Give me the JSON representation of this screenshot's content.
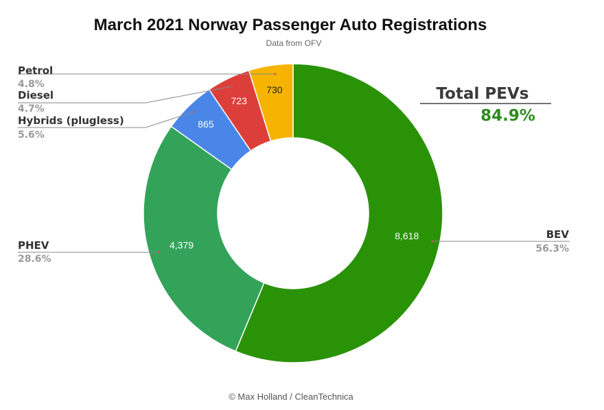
{
  "chart_data": {
    "type": "pie",
    "title": "March 2021 Norway Passenger Auto Registrations",
    "subtitle": "Data from OFV",
    "credit": "© Max Holland / CleanTechnica",
    "donut": true,
    "slices": [
      {
        "label": "BEV",
        "value": 8618,
        "value_label": "8,618",
        "percent_label": "56.3%",
        "color": "#2a9206",
        "value_color": "#ffffff"
      },
      {
        "label": "PHEV",
        "value": 4379,
        "value_label": "4,379",
        "percent_label": "28.6%",
        "color": "#33a35a",
        "value_color": "#ffffff"
      },
      {
        "label": "Hybrids (plugless)",
        "value": 865,
        "value_label": "865",
        "percent_label": "5.6%",
        "color": "#4a86e8",
        "value_color": "#ffffff"
      },
      {
        "label": "Diesel",
        "value": 723,
        "value_label": "723",
        "percent_label": "4.7%",
        "color": "#dc3f3a",
        "value_color": "#ffffff"
      },
      {
        "label": "Petrol",
        "value": 730,
        "value_label": "730",
        "percent_label": "4.8%",
        "color": "#f6b400",
        "value_color": "#222222"
      }
    ],
    "annotation": {
      "title": "Total PEVs",
      "value": "84.9%"
    }
  }
}
